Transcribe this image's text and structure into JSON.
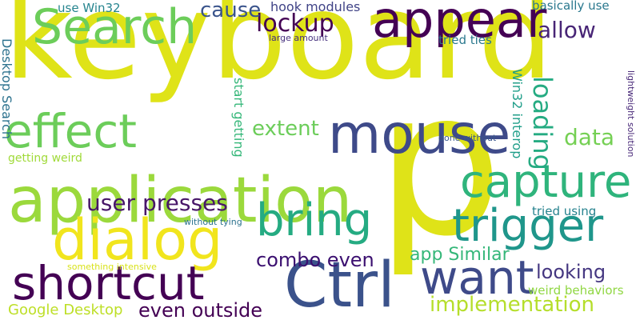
{
  "words": [
    {
      "text": "keyboard",
      "color": "#dfe318"
    },
    {
      "text": "p",
      "color": "#dfe318"
    },
    {
      "text": "application",
      "color": "#9bd93c"
    },
    {
      "text": "dialog",
      "color": "#f1e51d"
    },
    {
      "text": "mouse",
      "color": "#3e4a89"
    },
    {
      "text": "Ctrl",
      "color": "#3b528b"
    },
    {
      "text": "appear",
      "color": "#440154"
    },
    {
      "text": "Search",
      "color": "#6ccd5a"
    },
    {
      "text": "effect",
      "color": "#6ccd5a"
    },
    {
      "text": "shortcut",
      "color": "#440154"
    },
    {
      "text": "want",
      "color": "#3e4a89"
    },
    {
      "text": "capture",
      "color": "#2fb47c"
    },
    {
      "text": "trigger",
      "color": "#1f968b"
    },
    {
      "text": "bring",
      "color": "#25ab82"
    },
    {
      "text": "lockup",
      "color": "#440154"
    },
    {
      "text": "allow",
      "color": "#482576"
    },
    {
      "text": "cause",
      "color": "#3a548c"
    },
    {
      "text": "extent",
      "color": "#6ccd5a"
    },
    {
      "text": "data",
      "color": "#75d054"
    },
    {
      "text": "loading",
      "color": "#25ab82"
    },
    {
      "text": "user presses",
      "color": "#481769"
    },
    {
      "text": "combo even",
      "color": "#3b0f70"
    },
    {
      "text": "app Similar",
      "color": "#35b779"
    },
    {
      "text": "looking",
      "color": "#453781"
    },
    {
      "text": "implementation",
      "color": "#b5de2b"
    },
    {
      "text": "even outside",
      "color": "#440154"
    },
    {
      "text": "Google Desktop",
      "color": "#bddf26"
    },
    {
      "text": "hook modules",
      "color": "#414487"
    },
    {
      "text": "use Win32",
      "color": "#25848e"
    },
    {
      "text": "basically use",
      "color": "#2a788e"
    },
    {
      "text": "tried ties",
      "color": "#2a788e"
    },
    {
      "text": "large amount",
      "color": "#46307e"
    },
    {
      "text": "Desktop Search",
      "color": "#2c728e"
    },
    {
      "text": "getting weird",
      "color": "#a0da39"
    },
    {
      "text": "start getting",
      "color": "#35b779"
    },
    {
      "text": "Win32 interop",
      "color": "#1f9e89"
    },
    {
      "text": "done without",
      "color": "#39568c"
    },
    {
      "text": "lightweight solution",
      "color": "#482878"
    },
    {
      "text": "tried using",
      "color": "#26828e"
    },
    {
      "text": "without tying",
      "color": "#2c728e"
    },
    {
      "text": "something intensive",
      "color": "#d8e219"
    },
    {
      "text": "weird behaviors",
      "color": "#90d743"
    }
  ]
}
